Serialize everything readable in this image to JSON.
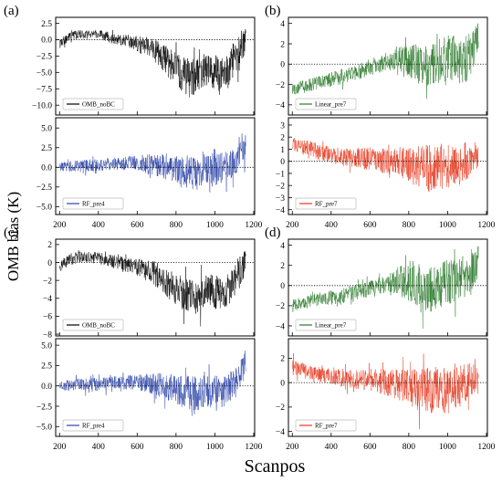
{
  "figure": {
    "ylabel": "OMB bias (K)",
    "xlabel": "Scanpos",
    "panel_labels": [
      "(a)",
      "(b)",
      "(c)",
      "(d)"
    ]
  },
  "chart_data": [
    {
      "panel": "(a)",
      "position": "top",
      "type": "line",
      "series": [
        {
          "name": "OMB_noBC",
          "color": "#000000"
        }
      ],
      "x_range": [
        200,
        1160
      ],
      "ylim": [
        -11.5,
        3.4
      ],
      "yticks": [
        2.5,
        0.0,
        -2.5,
        -5.0,
        -7.5,
        -10.0
      ],
      "ytick_labels": [
        "2.5",
        "0.0",
        "−2.5",
        "−5.0",
        "−7.5",
        "−10.0"
      ],
      "envelope": {
        "x": [
          210,
          250,
          300,
          350,
          400,
          450,
          500,
          550,
          600,
          650,
          700,
          750,
          800,
          850,
          900,
          950,
          1000,
          1050,
          1100,
          1130,
          1160
        ],
        "mid": [
          -0.5,
          0.5,
          0.8,
          0.9,
          0.9,
          0.4,
          0.0,
          -0.2,
          -0.6,
          -1.2,
          -1.8,
          -3.2,
          -4.5,
          -5.5,
          -5.8,
          -4.5,
          -5.0,
          -5.5,
          -3.0,
          -2.0,
          0.5
        ],
        "amp": [
          1.0,
          0.8,
          0.8,
          0.8,
          0.8,
          1.0,
          1.0,
          1.2,
          1.5,
          2.0,
          2.2,
          2.8,
          3.0,
          3.5,
          3.5,
          3.2,
          3.3,
          3.3,
          3.2,
          3.5,
          2.0
        ]
      },
      "zero_line": true,
      "legend_loc": "lower-left"
    },
    {
      "panel": "(a)",
      "position": "bottom",
      "type": "line",
      "series": [
        {
          "name": "RF_pre4",
          "color": "#2d44a8"
        }
      ],
      "x_range": [
        200,
        1160
      ],
      "ylim": [
        -6.0,
        6.3
      ],
      "yticks": [
        5.0,
        2.5,
        0.0,
        -2.5,
        -5.0
      ],
      "ytick_labels": [
        "5.0",
        "2.5",
        "0.0",
        "−2.5",
        "−5.0"
      ],
      "envelope": {
        "x": [
          210,
          300,
          400,
          500,
          600,
          700,
          800,
          850,
          900,
          950,
          1000,
          1050,
          1100,
          1130,
          1160
        ],
        "mid": [
          0.0,
          0.2,
          0.3,
          0.5,
          0.6,
          0.3,
          -0.3,
          -0.5,
          -0.8,
          0.0,
          -0.5,
          0.0,
          0.5,
          1.5,
          3.0
        ],
        "amp": [
          0.8,
          0.9,
          1.0,
          1.0,
          1.2,
          1.8,
          2.3,
          2.6,
          2.8,
          2.5,
          3.0,
          2.5,
          2.3,
          2.0,
          2.5
        ]
      },
      "zero_line": true,
      "legend_loc": "lower-left"
    },
    {
      "panel": "(b)",
      "position": "top",
      "type": "line",
      "series": [
        {
          "name": "Linear_pre7",
          "color": "#2d7a2d"
        }
      ],
      "x_range": [
        200,
        1160
      ],
      "ylim": [
        -5.0,
        4.6
      ],
      "yticks": [
        4,
        2,
        0,
        -2,
        -4
      ],
      "ytick_labels": [
        "4",
        "2",
        "0",
        "−2",
        "−4"
      ],
      "envelope": {
        "x": [
          210,
          300,
          400,
          500,
          600,
          700,
          750,
          800,
          850,
          900,
          950,
          1000,
          1050,
          1100,
          1130,
          1160
        ],
        "mid": [
          -2.5,
          -2.0,
          -1.5,
          -1.0,
          -0.3,
          0.3,
          0.5,
          0.3,
          0.0,
          -0.3,
          0.3,
          0.5,
          0.5,
          0.5,
          1.5,
          2.5
        ],
        "amp": [
          0.8,
          0.8,
          0.9,
          1.0,
          1.0,
          1.2,
          1.5,
          2.0,
          2.5,
          2.5,
          2.5,
          3.0,
          3.0,
          3.0,
          2.5,
          2.0
        ]
      },
      "zero_line": true,
      "legend_loc": "lower-left"
    },
    {
      "panel": "(b)",
      "position": "bottom",
      "type": "line",
      "series": [
        {
          "name": "RF_pre7",
          "color": "#e63a1f"
        }
      ],
      "x_range": [
        200,
        1160
      ],
      "ylim": [
        -4.4,
        3.6
      ],
      "yticks": [
        3,
        2,
        1,
        0,
        -1,
        -2,
        -3,
        -4
      ],
      "ytick_labels": [
        "3",
        "2",
        "1",
        "0",
        "−1",
        "−2",
        "−3",
        "−4"
      ],
      "envelope": {
        "x": [
          210,
          300,
          400,
          500,
          600,
          700,
          800,
          850,
          900,
          950,
          1000,
          1050,
          1100,
          1160
        ],
        "mid": [
          1.5,
          1.0,
          0.5,
          0.3,
          0.2,
          0.0,
          -0.2,
          -0.5,
          -0.6,
          -0.3,
          -0.5,
          -0.3,
          0.0,
          0.5
        ],
        "amp": [
          0.8,
          0.8,
          0.9,
          1.0,
          1.2,
          1.4,
          1.8,
          2.2,
          2.5,
          2.3,
          2.5,
          2.2,
          2.0,
          1.3
        ]
      },
      "zero_line": true,
      "legend_loc": "lower-left"
    },
    {
      "panel": "(c)",
      "position": "top",
      "type": "line",
      "series": [
        {
          "name": "OMB_noBC",
          "color": "#000000"
        }
      ],
      "x_range": [
        200,
        1160
      ],
      "ylim": [
        -8.2,
        2.6
      ],
      "yticks": [
        2,
        0,
        -2,
        -4,
        -6,
        -8
      ],
      "ytick_labels": [
        "2",
        "0",
        "−2",
        "−4",
        "−6",
        "−8"
      ],
      "envelope": {
        "x": [
          210,
          250,
          300,
          350,
          400,
          450,
          500,
          550,
          600,
          650,
          700,
          750,
          800,
          850,
          900,
          950,
          1000,
          1050,
          1100,
          1130,
          1160
        ],
        "mid": [
          -0.3,
          0.3,
          0.6,
          0.6,
          0.5,
          0.2,
          0.0,
          -0.3,
          -0.5,
          -0.9,
          -1.3,
          -2.3,
          -3.0,
          -3.6,
          -4.0,
          -3.0,
          -3.3,
          -3.6,
          -2.0,
          -1.5,
          0.5
        ],
        "amp": [
          0.8,
          0.8,
          0.8,
          0.8,
          0.8,
          0.9,
          1.0,
          1.0,
          1.2,
          1.5,
          1.8,
          2.0,
          2.2,
          2.5,
          2.5,
          2.3,
          2.4,
          2.4,
          2.2,
          2.5,
          1.5
        ]
      },
      "zero_line": true,
      "legend_loc": "lower-left"
    },
    {
      "panel": "(c)",
      "position": "bottom",
      "type": "line",
      "series": [
        {
          "name": "RF_pre4",
          "color": "#2d44a8"
        }
      ],
      "x_range": [
        200,
        1160
      ],
      "ylim": [
        -6.2,
        5.8
      ],
      "yticks": [
        5.0,
        2.5,
        0.0,
        -2.5,
        -5.0
      ],
      "ytick_labels": [
        "5.0",
        "2.5",
        "0.0",
        "−2.5",
        "−5.0"
      ],
      "envelope": {
        "x": [
          210,
          300,
          400,
          500,
          600,
          700,
          800,
          850,
          900,
          950,
          1000,
          1050,
          1100,
          1130,
          1160
        ],
        "mid": [
          0.0,
          0.2,
          0.2,
          0.4,
          0.5,
          0.2,
          -0.5,
          -0.8,
          -1.0,
          -0.5,
          -1.0,
          -0.5,
          0.5,
          1.5,
          3.0
        ],
        "amp": [
          0.8,
          0.9,
          1.0,
          1.0,
          1.2,
          1.8,
          2.3,
          2.6,
          2.8,
          2.5,
          3.0,
          2.5,
          2.3,
          2.0,
          2.5
        ]
      },
      "zero_line": true,
      "legend_loc": "lower-left"
    },
    {
      "panel": "(d)",
      "position": "top",
      "type": "line",
      "series": [
        {
          "name": "Linear_pre7",
          "color": "#2d7a2d"
        }
      ],
      "x_range": [
        200,
        1160
      ],
      "ylim": [
        -5.0,
        4.6
      ],
      "yticks": [
        4,
        2,
        0,
        -2,
        -4
      ],
      "ytick_labels": [
        "4",
        "2",
        "0",
        "−2",
        "−4"
      ],
      "envelope": {
        "x": [
          210,
          300,
          400,
          500,
          600,
          700,
          750,
          800,
          850,
          900,
          950,
          1000,
          1050,
          1100,
          1130,
          1160
        ],
        "mid": [
          -2.0,
          -1.5,
          -1.2,
          -0.8,
          -0.3,
          0.3,
          0.5,
          0.3,
          0.0,
          -0.5,
          0.0,
          0.3,
          0.3,
          0.5,
          1.5,
          2.5
        ],
        "amp": [
          0.8,
          0.8,
          0.9,
          1.0,
          1.0,
          1.2,
          1.8,
          2.3,
          2.8,
          2.8,
          2.8,
          3.0,
          3.0,
          3.0,
          2.5,
          2.0
        ]
      },
      "zero_line": true,
      "legend_loc": "lower-left"
    },
    {
      "panel": "(d)",
      "position": "bottom",
      "type": "line",
      "series": [
        {
          "name": "RF_pre7",
          "color": "#e63a1f"
        }
      ],
      "x_range": [
        200,
        1160
      ],
      "ylim": [
        -4.4,
        3.6
      ],
      "yticks": [
        2,
        0,
        -2,
        -4
      ],
      "ytick_labels": [
        "2",
        "0",
        "−2",
        "−4"
      ],
      "envelope": {
        "x": [
          210,
          300,
          400,
          500,
          600,
          700,
          800,
          850,
          900,
          950,
          1000,
          1050,
          1100,
          1160
        ],
        "mid": [
          1.2,
          0.8,
          0.5,
          0.3,
          0.2,
          0.0,
          -0.3,
          -0.6,
          -0.8,
          -0.5,
          -0.8,
          -0.5,
          0.0,
          0.5
        ],
        "amp": [
          0.8,
          0.8,
          0.9,
          1.0,
          1.2,
          1.4,
          1.8,
          2.2,
          2.6,
          2.3,
          2.6,
          2.2,
          2.0,
          1.3
        ]
      },
      "zero_line": true,
      "legend_loc": "lower-left"
    }
  ],
  "x_axes": [
    {
      "column": "left",
      "xlim": [
        180,
        1205
      ],
      "ticks": [
        200,
        400,
        600,
        800,
        1000,
        1200
      ],
      "tick_labels": [
        "200",
        "400",
        "600",
        "800",
        "1000",
        "1200"
      ]
    },
    {
      "column": "right",
      "xlim": [
        180,
        1205
      ],
      "ticks": [
        200,
        400,
        600,
        800,
        1000,
        1200
      ],
      "tick_labels": [
        "200",
        "400",
        "600",
        "800",
        "1000",
        "1200"
      ]
    }
  ]
}
